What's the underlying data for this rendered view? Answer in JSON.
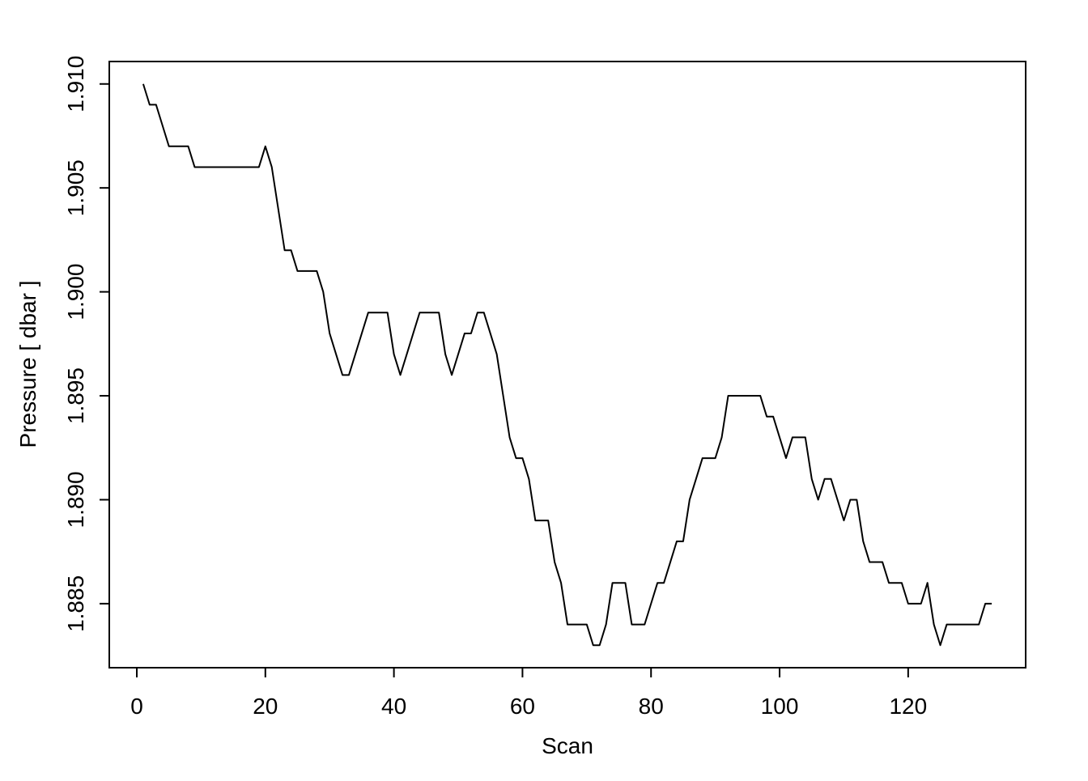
{
  "chart_data": {
    "type": "line",
    "xlabel": "Scan",
    "ylabel": "Pressure [ dbar ]",
    "x": [
      1,
      2,
      3,
      4,
      5,
      6,
      7,
      8,
      9,
      10,
      11,
      12,
      13,
      14,
      15,
      16,
      17,
      18,
      19,
      20,
      21,
      22,
      23,
      24,
      25,
      26,
      27,
      28,
      29,
      30,
      31,
      32,
      33,
      34,
      35,
      36,
      37,
      38,
      39,
      40,
      41,
      42,
      43,
      44,
      45,
      46,
      47,
      48,
      49,
      50,
      51,
      52,
      53,
      54,
      55,
      56,
      57,
      58,
      59,
      60,
      61,
      62,
      63,
      64,
      65,
      66,
      67,
      68,
      69,
      70,
      71,
      72,
      73,
      74,
      75,
      76,
      77,
      78,
      79,
      80,
      81,
      82,
      83,
      84,
      85,
      86,
      87,
      88,
      89,
      90,
      91,
      92,
      93,
      94,
      95,
      96,
      97,
      98,
      99,
      100,
      101,
      102,
      103,
      104,
      105,
      106,
      107,
      108,
      109,
      110,
      111,
      112,
      113,
      114,
      115,
      116,
      117,
      118,
      119,
      120,
      121,
      122,
      123,
      124,
      125,
      126,
      127,
      128,
      129,
      130,
      131,
      132,
      133
    ],
    "series": [
      {
        "color": "#000000",
        "values": [
          1.91,
          1.909,
          1.909,
          1.908,
          1.907,
          1.907,
          1.907,
          1.907,
          1.906,
          1.906,
          1.906,
          1.906,
          1.906,
          1.906,
          1.906,
          1.906,
          1.906,
          1.906,
          1.906,
          1.907,
          1.906,
          1.904,
          1.902,
          1.902,
          1.901,
          1.901,
          1.901,
          1.901,
          1.9,
          1.898,
          1.897,
          1.896,
          1.896,
          1.897,
          1.898,
          1.899,
          1.899,
          1.899,
          1.899,
          1.897,
          1.896,
          1.897,
          1.898,
          1.899,
          1.899,
          1.899,
          1.899,
          1.897,
          1.896,
          1.897,
          1.898,
          1.898,
          1.899,
          1.899,
          1.898,
          1.897,
          1.895,
          1.893,
          1.892,
          1.892,
          1.891,
          1.889,
          1.889,
          1.889,
          1.887,
          1.886,
          1.884,
          1.884,
          1.884,
          1.884,
          1.883,
          1.883,
          1.884,
          1.886,
          1.886,
          1.886,
          1.884,
          1.884,
          1.884,
          1.885,
          1.886,
          1.886,
          1.887,
          1.888,
          1.888,
          1.89,
          1.891,
          1.892,
          1.892,
          1.892,
          1.893,
          1.895,
          1.895,
          1.895,
          1.895,
          1.895,
          1.895,
          1.894,
          1.894,
          1.893,
          1.892,
          1.893,
          1.893,
          1.893,
          1.891,
          1.89,
          1.891,
          1.891,
          1.89,
          1.889,
          1.89,
          1.89,
          1.888,
          1.887,
          1.887,
          1.887,
          1.886,
          1.886,
          1.886,
          1.885,
          1.885,
          1.885,
          1.886,
          1.884,
          1.883,
          1.884,
          1.884,
          1.884,
          1.884,
          1.884,
          1.884,
          1.885,
          1.885
        ]
      }
    ],
    "xlim": [
      -4.28,
      138.28
    ],
    "xticks": [
      0,
      20,
      40,
      60,
      80,
      100,
      120
    ],
    "ylim": [
      1.88192,
      1.91108
    ],
    "yticks": [
      1.885,
      {
        "value": 1.89,
        "label": "1.890"
      },
      1.895,
      {
        "value": 1.9,
        "label": "1.900"
      },
      1.905,
      {
        "value": 1.91,
        "label": "1.910"
      }
    ],
    "grid": false
  }
}
